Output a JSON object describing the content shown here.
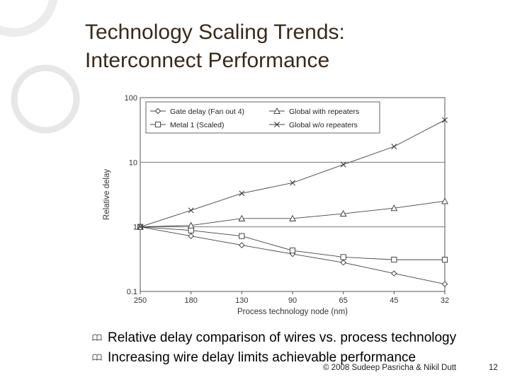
{
  "slide": {
    "title_line1": "Technology Scaling Trends:",
    "title_line2": "Interconnect Performance",
    "bullets": [
      "Relative delay comparison of wires vs. process technology",
      "Increasing wire delay limits achievable performance"
    ],
    "footer": "© 2008 Sudeep Pasricha & Nikil Dutt",
    "page_number": "12"
  },
  "chart_data": {
    "type": "line",
    "title": "",
    "xlabel": "Process technology node (nm)",
    "ylabel": "Relative delay",
    "categories": [
      "250",
      "180",
      "130",
      "90",
      "65",
      "45",
      "32"
    ],
    "y_scale": "log",
    "ylim": [
      0.1,
      100
    ],
    "y_ticks": [
      "100",
      "10",
      "1",
      "0.1"
    ],
    "legend_position": "top-left",
    "series": [
      {
        "name": "Gate delay (Fan out 4)",
        "marker": "diamond",
        "values": [
          1,
          0.72,
          0.52,
          0.38,
          0.28,
          0.19,
          0.13
        ]
      },
      {
        "name": "Metal 1 (Scaled)",
        "marker": "square",
        "values": [
          1,
          0.88,
          0.72,
          0.43,
          0.34,
          0.31,
          0.31
        ]
      },
      {
        "name": "Global with repeaters",
        "marker": "triangle",
        "values": [
          1,
          1.05,
          1.35,
          1.35,
          1.6,
          1.95,
          2.5
        ]
      },
      {
        "name": "Global w/o repeaters",
        "marker": "x",
        "values": [
          1,
          1.8,
          3.3,
          4.8,
          9.2,
          17.5,
          45
        ]
      }
    ]
  }
}
